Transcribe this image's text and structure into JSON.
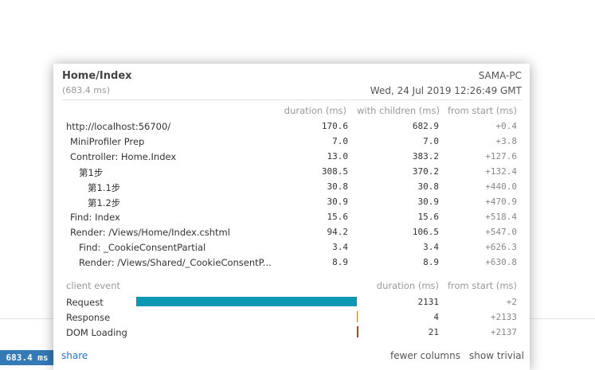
{
  "badge": {
    "label": "683.4 ms"
  },
  "popup": {
    "title": "Home/Index",
    "duration": "(683.4 ms)",
    "machine": "SAMA-PC",
    "timestamp": "Wed, 24 Jul 2019 12:26:49 GMT",
    "columns": {
      "duration": "duration (ms)",
      "with_children": "with children (ms)",
      "from_start": "from start (ms)"
    },
    "timings": [
      {
        "name": "http://localhost:56700/",
        "indent": 0,
        "duration": "170.6",
        "with_children": "682.9",
        "from_start": "+0.4"
      },
      {
        "name": "MiniProfiler Prep",
        "indent": 1,
        "duration": "7.0",
        "with_children": "7.0",
        "from_start": "+3.8"
      },
      {
        "name": "Controller: Home.Index",
        "indent": 1,
        "duration": "13.0",
        "with_children": "383.2",
        "from_start": "+127.6"
      },
      {
        "name": "第1步",
        "indent": 2,
        "duration": "308.5",
        "with_children": "370.2",
        "from_start": "+132.4"
      },
      {
        "name": "第1.1步",
        "indent": 3,
        "duration": "30.8",
        "with_children": "30.8",
        "from_start": "+440.0"
      },
      {
        "name": "第1.2步",
        "indent": 3,
        "duration": "30.9",
        "with_children": "30.9",
        "from_start": "+470.9"
      },
      {
        "name": "Find: Index",
        "indent": 1,
        "duration": "15.6",
        "with_children": "15.6",
        "from_start": "+518.4"
      },
      {
        "name": "Render: /Views/Home/Index.cshtml",
        "indent": 1,
        "duration": "94.2",
        "with_children": "106.5",
        "from_start": "+547.0"
      },
      {
        "name": "Find: _CookieConsentPartial",
        "indent": 2,
        "duration": "3.4",
        "with_children": "3.4",
        "from_start": "+626.3"
      },
      {
        "name": "Render: /Views/Shared/_CookieConsentP...",
        "indent": 2,
        "duration": "8.9",
        "with_children": "8.9",
        "from_start": "+630.8"
      }
    ],
    "client": {
      "label": "client event",
      "columns": {
        "duration": "duration (ms)",
        "from_start": "from start (ms)"
      },
      "events": [
        {
          "name": "Request",
          "duration": "2131",
          "from_start": "+2",
          "bar_color": "#0e97b5",
          "bar_start_frac": 0.0,
          "bar_width_frac": 1.0
        },
        {
          "name": "Response",
          "duration": "4",
          "from_start": "+2133",
          "bar_color": "#e57a2a",
          "bar_start_frac": 0.9985,
          "bar_width_frac": 0.004
        },
        {
          "name": "DOM Loading",
          "duration": "21",
          "from_start": "+2137",
          "bar_color": "#c0392b",
          "bar_start_frac": 1.0,
          "bar_width_frac": 0.008
        }
      ]
    },
    "footer": {
      "share": "share",
      "fewer_columns": "fewer columns",
      "show_trivial": "show trivial"
    }
  }
}
